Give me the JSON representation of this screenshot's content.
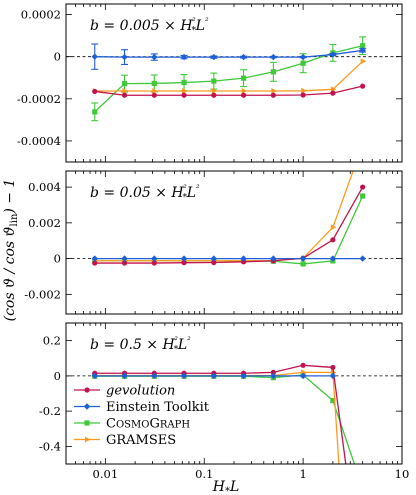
{
  "chart_data": {
    "type": "line",
    "xlabel": "H_*L",
    "ylabel": "(cos ϑ / cos ϑ_lin) − 1",
    "xscale": "log",
    "xlim": [
      0.004,
      10
    ],
    "x_ticks": [
      "0.01",
      "0.1",
      "1",
      "10"
    ],
    "x": [
      0.0078125,
      0.015625,
      0.03125,
      0.0625,
      0.125,
      0.25,
      0.5,
      1,
      2,
      4
    ],
    "legend": {
      "location": "bottom-left of panel 3"
    },
    "colors": {
      "gevolution": "#c1134e",
      "einstein": "#1f5fd6",
      "cosmograph": "#3fc93a",
      "gramses": "#ff9a1f"
    },
    "panels": [
      {
        "annotation": "b = 0.005 × H_*²L²",
        "ylim": [
          -0.0005,
          0.00025
        ],
        "y_ticks": [
          "0.0002",
          "0",
          "-0.0002",
          "-0.0004"
        ],
        "series": [
          {
            "key": "gevolution",
            "name": "gevolution",
            "x": [
              0.0078125,
              0.015625,
              0.03125,
              0.0625,
              0.125,
              0.25,
              0.5,
              1,
              2,
              4
            ],
            "values": [
              -0.000165,
              -0.000183,
              -0.000183,
              -0.000183,
              -0.000183,
              -0.000183,
              -0.000183,
              -0.000182,
              -0.000173,
              -0.00014
            ]
          },
          {
            "key": "einstein",
            "name": "Einstein Toolkit",
            "x": [
              0.0078125,
              0.015625,
              0.03125,
              0.0625,
              0.125,
              0.25,
              0.5,
              1,
              2,
              4
            ],
            "values": [
              0,
              -2e-06,
              -2e-06,
              -2e-06,
              -2e-06,
              -2e-06,
              -2e-06,
              -2e-06,
              1e-05,
              3e-05
            ],
            "errors": [
              6e-05,
              3.5e-05,
              1.5e-05,
              8e-06,
              5e-06,
              4e-06,
              3e-06,
              3e-06,
              5e-06,
              8e-06
            ]
          },
          {
            "key": "cosmograph",
            "name": "CosmoGraph",
            "x": [
              0.0078125,
              0.015625,
              0.03125,
              0.0625,
              0.125,
              0.25,
              0.5,
              1,
              2,
              4
            ],
            "values": [
              -0.000262,
              -0.000128,
              -0.000127,
              -0.000123,
              -0.000116,
              -0.000102,
              -7.2e-05,
              -3.1e-05,
              1.8e-05,
              5.2e-05
            ],
            "errors": [
              4.2e-05,
              4e-05,
              4e-05,
              3.8e-05,
              3.8e-05,
              4e-05,
              4.5e-05,
              4.5e-05,
              4e-05,
              4.2e-05
            ]
          },
          {
            "key": "gramses",
            "name": "GRAMSES",
            "x": [
              0.0078125,
              0.015625,
              0.03125,
              0.0625,
              0.125,
              0.25,
              0.5,
              1,
              2,
              4
            ],
            "values": [
              -0.000163,
              -0.000163,
              -0.000163,
              -0.000163,
              -0.000163,
              -0.000163,
              -0.000163,
              -0.000162,
              -0.000155,
              -2.2e-05
            ]
          }
        ]
      },
      {
        "annotation": "b = 0.05 × H_*²L²",
        "ylim": [
          -0.0031,
          0.0049
        ],
        "y_ticks": [
          "0.004",
          "0.002",
          "0",
          "-0.002"
        ],
        "series": [
          {
            "key": "gevolution",
            "name": "gevolution",
            "x": [
              0.0078125,
              0.015625,
              0.03125,
              0.0625,
              0.125,
              0.25,
              0.5,
              1,
              2,
              4
            ],
            "values": [
              -0.00025,
              -0.00025,
              -0.00025,
              -0.00023,
              -0.00022,
              -0.00018,
              -0.00012,
              2e-05,
              0.00105,
              0.004
            ]
          },
          {
            "key": "einstein",
            "name": "Einstein Toolkit",
            "x": [
              0.0078125,
              0.015625,
              0.03125,
              0.0625,
              0.125,
              0.25,
              0.5,
              1,
              2,
              4
            ],
            "values": [
              0,
              0,
              0,
              0,
              0,
              0,
              0,
              0,
              0,
              0
            ]
          },
          {
            "key": "cosmograph",
            "name": "CosmoGraph",
            "x": [
              0.0078125,
              0.015625,
              0.03125,
              0.0625,
              0.125,
              0.25,
              0.5,
              1,
              2,
              4
            ],
            "values": [
              -0.00012,
              -0.00012,
              -0.00012,
              -0.00012,
              -0.00012,
              -0.00012,
              -0.00015,
              -0.0003,
              -0.00013,
              0.0035
            ]
          },
          {
            "key": "gramses",
            "name": "GRAMSES",
            "x": [
              0.0078125,
              0.015625,
              0.03125,
              0.0625,
              0.125,
              0.25,
              0.5,
              1,
              2,
              3.2
            ],
            "values": [
              -0.00012,
              -0.00012,
              -0.00012,
              -0.00012,
              -0.00012,
              -0.00012,
              -0.00012,
              2e-05,
              0.00175,
              0.0049
            ]
          }
        ]
      },
      {
        "annotation": "b = 0.5 × H_*²L²",
        "ylim": [
          -0.5,
          0.3
        ],
        "y_ticks": [
          "0.2",
          "0",
          "-0.2",
          "-0.4"
        ],
        "series": [
          {
            "key": "gevolution",
            "name": "gevolution",
            "x": [
              0.0078125,
              0.015625,
              0.03125,
              0.0625,
              0.125,
              0.25,
              0.5,
              1,
              2,
              2.7
            ],
            "values": [
              0.015,
              0.015,
              0.015,
              0.015,
              0.015,
              0.015,
              0.02,
              0.06,
              0.048,
              -0.5
            ]
          },
          {
            "key": "einstein",
            "name": "Einstein Toolkit",
            "x": [
              0.0078125,
              0.015625,
              0.03125,
              0.0625,
              0.125,
              0.25,
              0.5,
              1,
              2
            ],
            "values": [
              0,
              0,
              0,
              0,
              0,
              0,
              0,
              0,
              0
            ]
          },
          {
            "key": "cosmograph",
            "name": "CosmoGraph",
            "x": [
              0.0078125,
              0.015625,
              0.03125,
              0.0625,
              0.125,
              0.25,
              0.5,
              1,
              2,
              3.3
            ],
            "values": [
              -0.002,
              -0.002,
              -0.002,
              -0.002,
              -0.002,
              -0.002,
              -0.01,
              0.005,
              -0.14,
              -0.5
            ]
          },
          {
            "key": "gramses",
            "name": "GRAMSES",
            "x": [
              0.0078125,
              0.015625,
              0.03125,
              0.0625,
              0.125,
              0.25,
              0.5,
              1,
              2,
              2.3
            ],
            "values": [
              0.002,
              0.002,
              0.002,
              0.002,
              0.002,
              0.002,
              0.002,
              0.02,
              0.02,
              -0.5
            ]
          }
        ]
      }
    ]
  }
}
